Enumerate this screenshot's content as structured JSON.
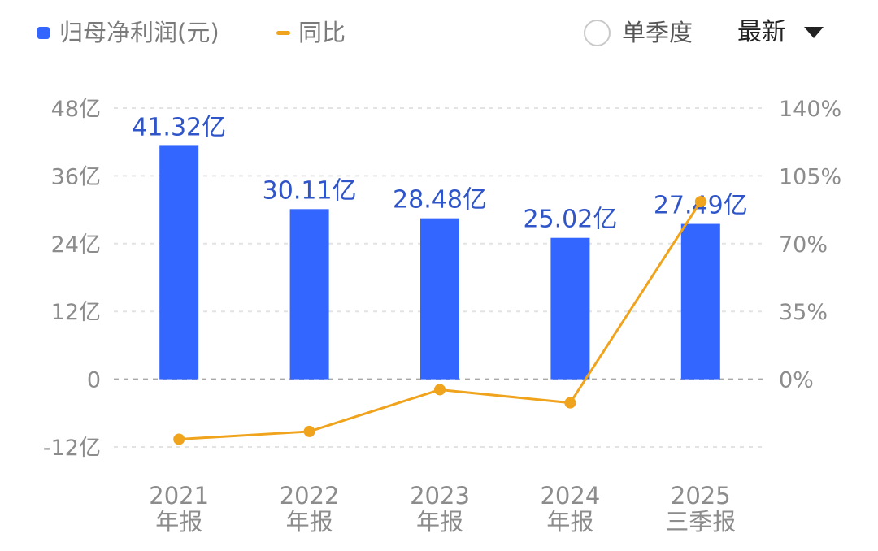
{
  "legend": {
    "bar_label": "归母净利润(元)",
    "line_label": "同比"
  },
  "controls": {
    "single_quarter_label": "单季度",
    "single_quarter_checked": false,
    "period_select_label": "最新"
  },
  "colors": {
    "bar": "#3366ff",
    "line": "#f0a31c",
    "bar_label": "#2f55c8",
    "axis_text": "#8c8c8c",
    "grid": "#e3e3e3",
    "zero_line": "#a8a8a8"
  },
  "chart_data": {
    "type": "bar",
    "categories": [
      [
        "2021",
        "年报"
      ],
      [
        "2022",
        "年报"
      ],
      [
        "2023",
        "年报"
      ],
      [
        "2024",
        "年报"
      ],
      [
        "2025",
        "三季报"
      ]
    ],
    "series": [
      {
        "name": "归母净利润(元)",
        "type": "bar",
        "axis": "left",
        "values": [
          41.32,
          30.11,
          28.48,
          25.02,
          27.49
        ],
        "labels": [
          "41.32亿",
          "30.11亿",
          "28.48亿",
          "25.02亿",
          "27.49亿"
        ]
      },
      {
        "name": "同比",
        "type": "line",
        "axis": "right",
        "values": [
          -31,
          -27,
          -5.4,
          -12.2,
          91.7
        ]
      }
    ],
    "left_axis": {
      "ylim": [
        -12,
        48
      ],
      "ticks": [
        48,
        36,
        24,
        12,
        0,
        -12
      ],
      "tick_labels": [
        "48亿",
        "36亿",
        "24亿",
        "12亿",
        "0",
        "-12亿"
      ]
    },
    "right_axis": {
      "ylim": [
        -35,
        140
      ],
      "ticks": [
        140,
        105,
        70,
        35,
        0
      ],
      "tick_labels": [
        "140%",
        "105%",
        "70%",
        "35%",
        "0%"
      ]
    },
    "grid": true,
    "legend_position": "top-left"
  }
}
